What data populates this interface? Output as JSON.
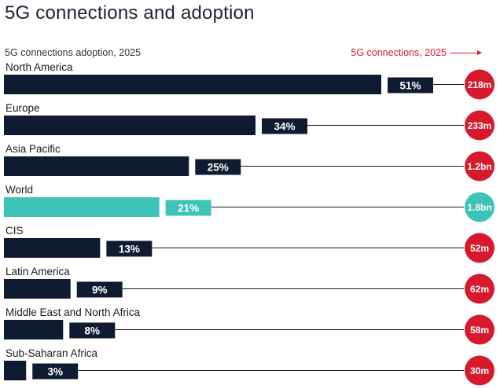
{
  "header": {
    "title": "5G connections and adoption",
    "left_subtitle": "5G connections adoption, 2025",
    "right_subtitle": "5G connections, 2025"
  },
  "colors": {
    "bar_default": "#0f1b30",
    "bar_highlight": "#3ec3b9",
    "connection_default": "#d7192d",
    "connection_highlight": "#3ec3b9"
  },
  "chart_data": {
    "type": "bar",
    "orientation": "horizontal",
    "categories": [
      "North America",
      "Europe",
      "Asia Pacific",
      "World",
      "CIS",
      "Latin America",
      "Middle East and North Africa",
      "Sub-Saharan Africa"
    ],
    "series": [
      {
        "name": "5G connections adoption, 2025",
        "values": [
          51,
          34,
          25,
          21,
          13,
          9,
          8,
          3
        ],
        "labels": [
          "51%",
          "34%",
          "25%",
          "21%",
          "13%",
          "9%",
          "8%",
          "3%"
        ]
      },
      {
        "name": "5G connections, 2025",
        "labels": [
          "218m",
          "233m",
          "1.2bn",
          "1.8bn",
          "52m",
          "62m",
          "58m",
          "30m"
        ]
      }
    ],
    "highlight": "World",
    "xlim": [
      0,
      51
    ]
  }
}
